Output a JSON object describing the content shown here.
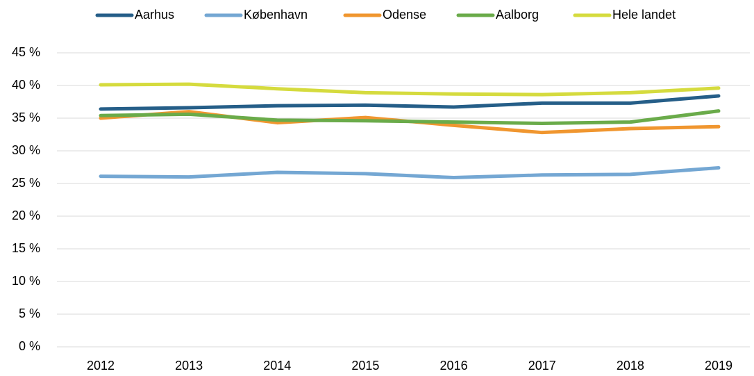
{
  "chart_data": {
    "type": "line",
    "categories": [
      "2012",
      "2013",
      "2014",
      "2015",
      "2016",
      "2017",
      "2018",
      "2019"
    ],
    "series": [
      {
        "name": "Aarhus",
        "color": "#255e88",
        "values": [
          36.4,
          36.6,
          36.9,
          37.0,
          36.7,
          37.3,
          37.3,
          38.4
        ]
      },
      {
        "name": "København",
        "color": "#74a7d3",
        "values": [
          26.1,
          26.0,
          26.7,
          26.5,
          25.9,
          26.3,
          26.4,
          27.4
        ]
      },
      {
        "name": "Odense",
        "color": "#f0962f",
        "values": [
          35.0,
          36.0,
          34.3,
          35.1,
          33.9,
          32.8,
          33.4,
          33.7
        ]
      },
      {
        "name": "Aalborg",
        "color": "#6aab4a",
        "values": [
          35.4,
          35.6,
          34.7,
          34.6,
          34.4,
          34.2,
          34.4,
          36.1
        ]
      },
      {
        "name": "Hele landet",
        "color": "#d5db3e",
        "values": [
          40.1,
          40.2,
          39.5,
          38.9,
          38.7,
          38.6,
          38.9,
          39.6
        ]
      }
    ],
    "ylim": [
      0,
      45
    ],
    "yticks": [
      {
        "value": 0,
        "label": "0 %"
      },
      {
        "value": 5,
        "label": "5 %"
      },
      {
        "value": 10,
        "label": "10 %"
      },
      {
        "value": 15,
        "label": "15 %"
      },
      {
        "value": 20,
        "label": "20 %"
      },
      {
        "value": 25,
        "label": "25 %"
      },
      {
        "value": 30,
        "label": "30 %"
      },
      {
        "value": 35,
        "label": "35 %"
      },
      {
        "value": 40,
        "label": "40 %"
      },
      {
        "value": 45,
        "label": "45 %"
      }
    ],
    "grid": true,
    "legend": "top"
  }
}
